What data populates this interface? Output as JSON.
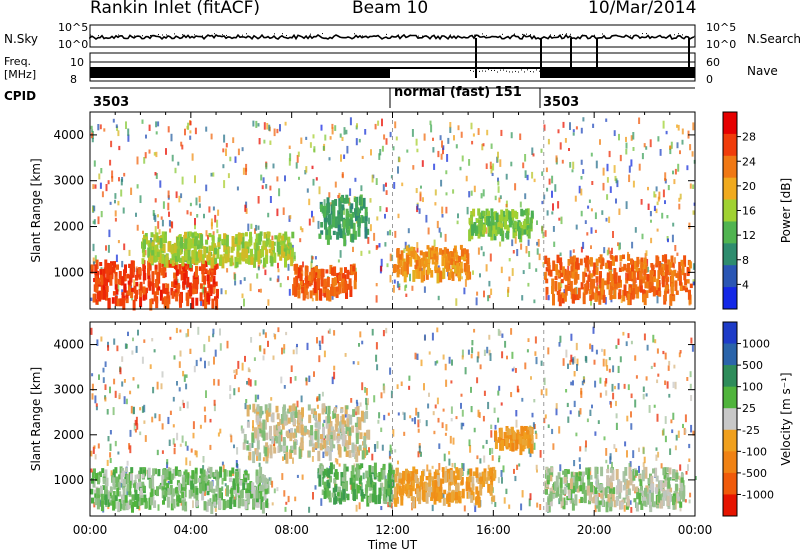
{
  "header": {
    "station": "Rankin Inlet (fitACF)",
    "beam": "Beam 10",
    "date": "10/Mar/2014"
  },
  "summary_panel": {
    "nsky_label": "N.Sky",
    "nsearch_label": "N.Search",
    "noise_ticks_left": [
      "10^5",
      "10^0"
    ],
    "noise_ticks_right": [
      "10^5",
      "10^0"
    ],
    "freq_label_top": "Freq.",
    "freq_label_unit": "[MHz]",
    "freq_ticks": [
      "10",
      "8"
    ],
    "nave_label": "Nave",
    "nave_ticks": [
      "60",
      "0"
    ],
    "cpid_label": "CPID",
    "cpid_segments": [
      "3503",
      "normal (fast)  151",
      "3503"
    ]
  },
  "colors": {
    "power_scale": [
      "#1428e6",
      "#2a56b4",
      "#2e8c6e",
      "#50b450",
      "#a0d232",
      "#f0aa1e",
      "#f07814",
      "#f03c0a",
      "#e60000"
    ],
    "velocity_scale": [
      "#1e3cc8",
      "#2a64aa",
      "#2e8c5a",
      "#50b43c",
      "#c8c8c8",
      "#f0a01e",
      "#f08214",
      "#f05a0a",
      "#e61400"
    ]
  },
  "chart_data": [
    {
      "type": "heatmap",
      "panel": "power",
      "xlabel": "",
      "ylabel": "Slant Range [km]",
      "xlim": [
        "00:00",
        "24:00"
      ],
      "ylim": [
        200,
        4500
      ],
      "y_ticks": [
        1000,
        2000,
        3000,
        4000
      ],
      "x_ticks": [
        "00:00",
        "04:00",
        "08:00",
        "12:00",
        "16:00",
        "20:00",
        "00:00"
      ],
      "colorbar_label": "Power [dB]",
      "colorbar_ticks": [
        "4",
        "8",
        "12",
        "16",
        "20",
        "24",
        "28"
      ],
      "colorbar_range": [
        0,
        32
      ],
      "bands": [
        {
          "t": [
            0,
            5
          ],
          "r": [
            400,
            1300
          ],
          "value": 28
        },
        {
          "t": [
            2,
            8
          ],
          "r": [
            1300,
            1900
          ],
          "value": 16
        },
        {
          "t": [
            8,
            10.5
          ],
          "r": [
            600,
            1200
          ],
          "value": 26
        },
        {
          "t": [
            9,
            11
          ],
          "r": [
            1800,
            2700
          ],
          "value": 10
        },
        {
          "t": [
            12,
            15
          ],
          "r": [
            1000,
            1600
          ],
          "value": 22
        },
        {
          "t": [
            15,
            17.5
          ],
          "r": [
            1900,
            2400
          ],
          "value": 14
        },
        {
          "t": [
            18,
            23.8
          ],
          "r": [
            500,
            1400
          ],
          "value": 25
        }
      ]
    },
    {
      "type": "heatmap",
      "panel": "velocity",
      "xlabel": "Time UT",
      "ylabel": "Slant Range [km]",
      "xlim": [
        "00:00",
        "24:00"
      ],
      "ylim": [
        200,
        4500
      ],
      "y_ticks": [
        1000,
        2000,
        3000,
        4000
      ],
      "x_ticks": [
        "00:00",
        "04:00",
        "08:00",
        "12:00",
        "16:00",
        "20:00",
        "00:00"
      ],
      "colorbar_label": "Velocity [m s⁻¹]",
      "colorbar_ticks": [
        "1000",
        "500",
        "100",
        "25",
        "-25",
        "-100",
        "-500",
        "-1000"
      ],
      "colorbar_range": [
        -1200,
        1200
      ],
      "bands": [
        {
          "t": [
            0,
            7
          ],
          "r": [
            500,
            1300
          ],
          "value": 200
        },
        {
          "t": [
            6,
            11
          ],
          "r": [
            1600,
            2700
          ],
          "value": 0
        },
        {
          "t": [
            9,
            12
          ],
          "r": [
            600,
            1400
          ],
          "value": 300
        },
        {
          "t": [
            12,
            16
          ],
          "r": [
            600,
            1300
          ],
          "value": -300
        },
        {
          "t": [
            16,
            17.5
          ],
          "r": [
            1800,
            2200
          ],
          "value": -400
        },
        {
          "t": [
            18,
            23.5
          ],
          "r": [
            500,
            1300
          ],
          "value": 80
        }
      ]
    }
  ],
  "annotations": {
    "dashed_time_markers": [
      "12:00",
      "18:00"
    ]
  }
}
